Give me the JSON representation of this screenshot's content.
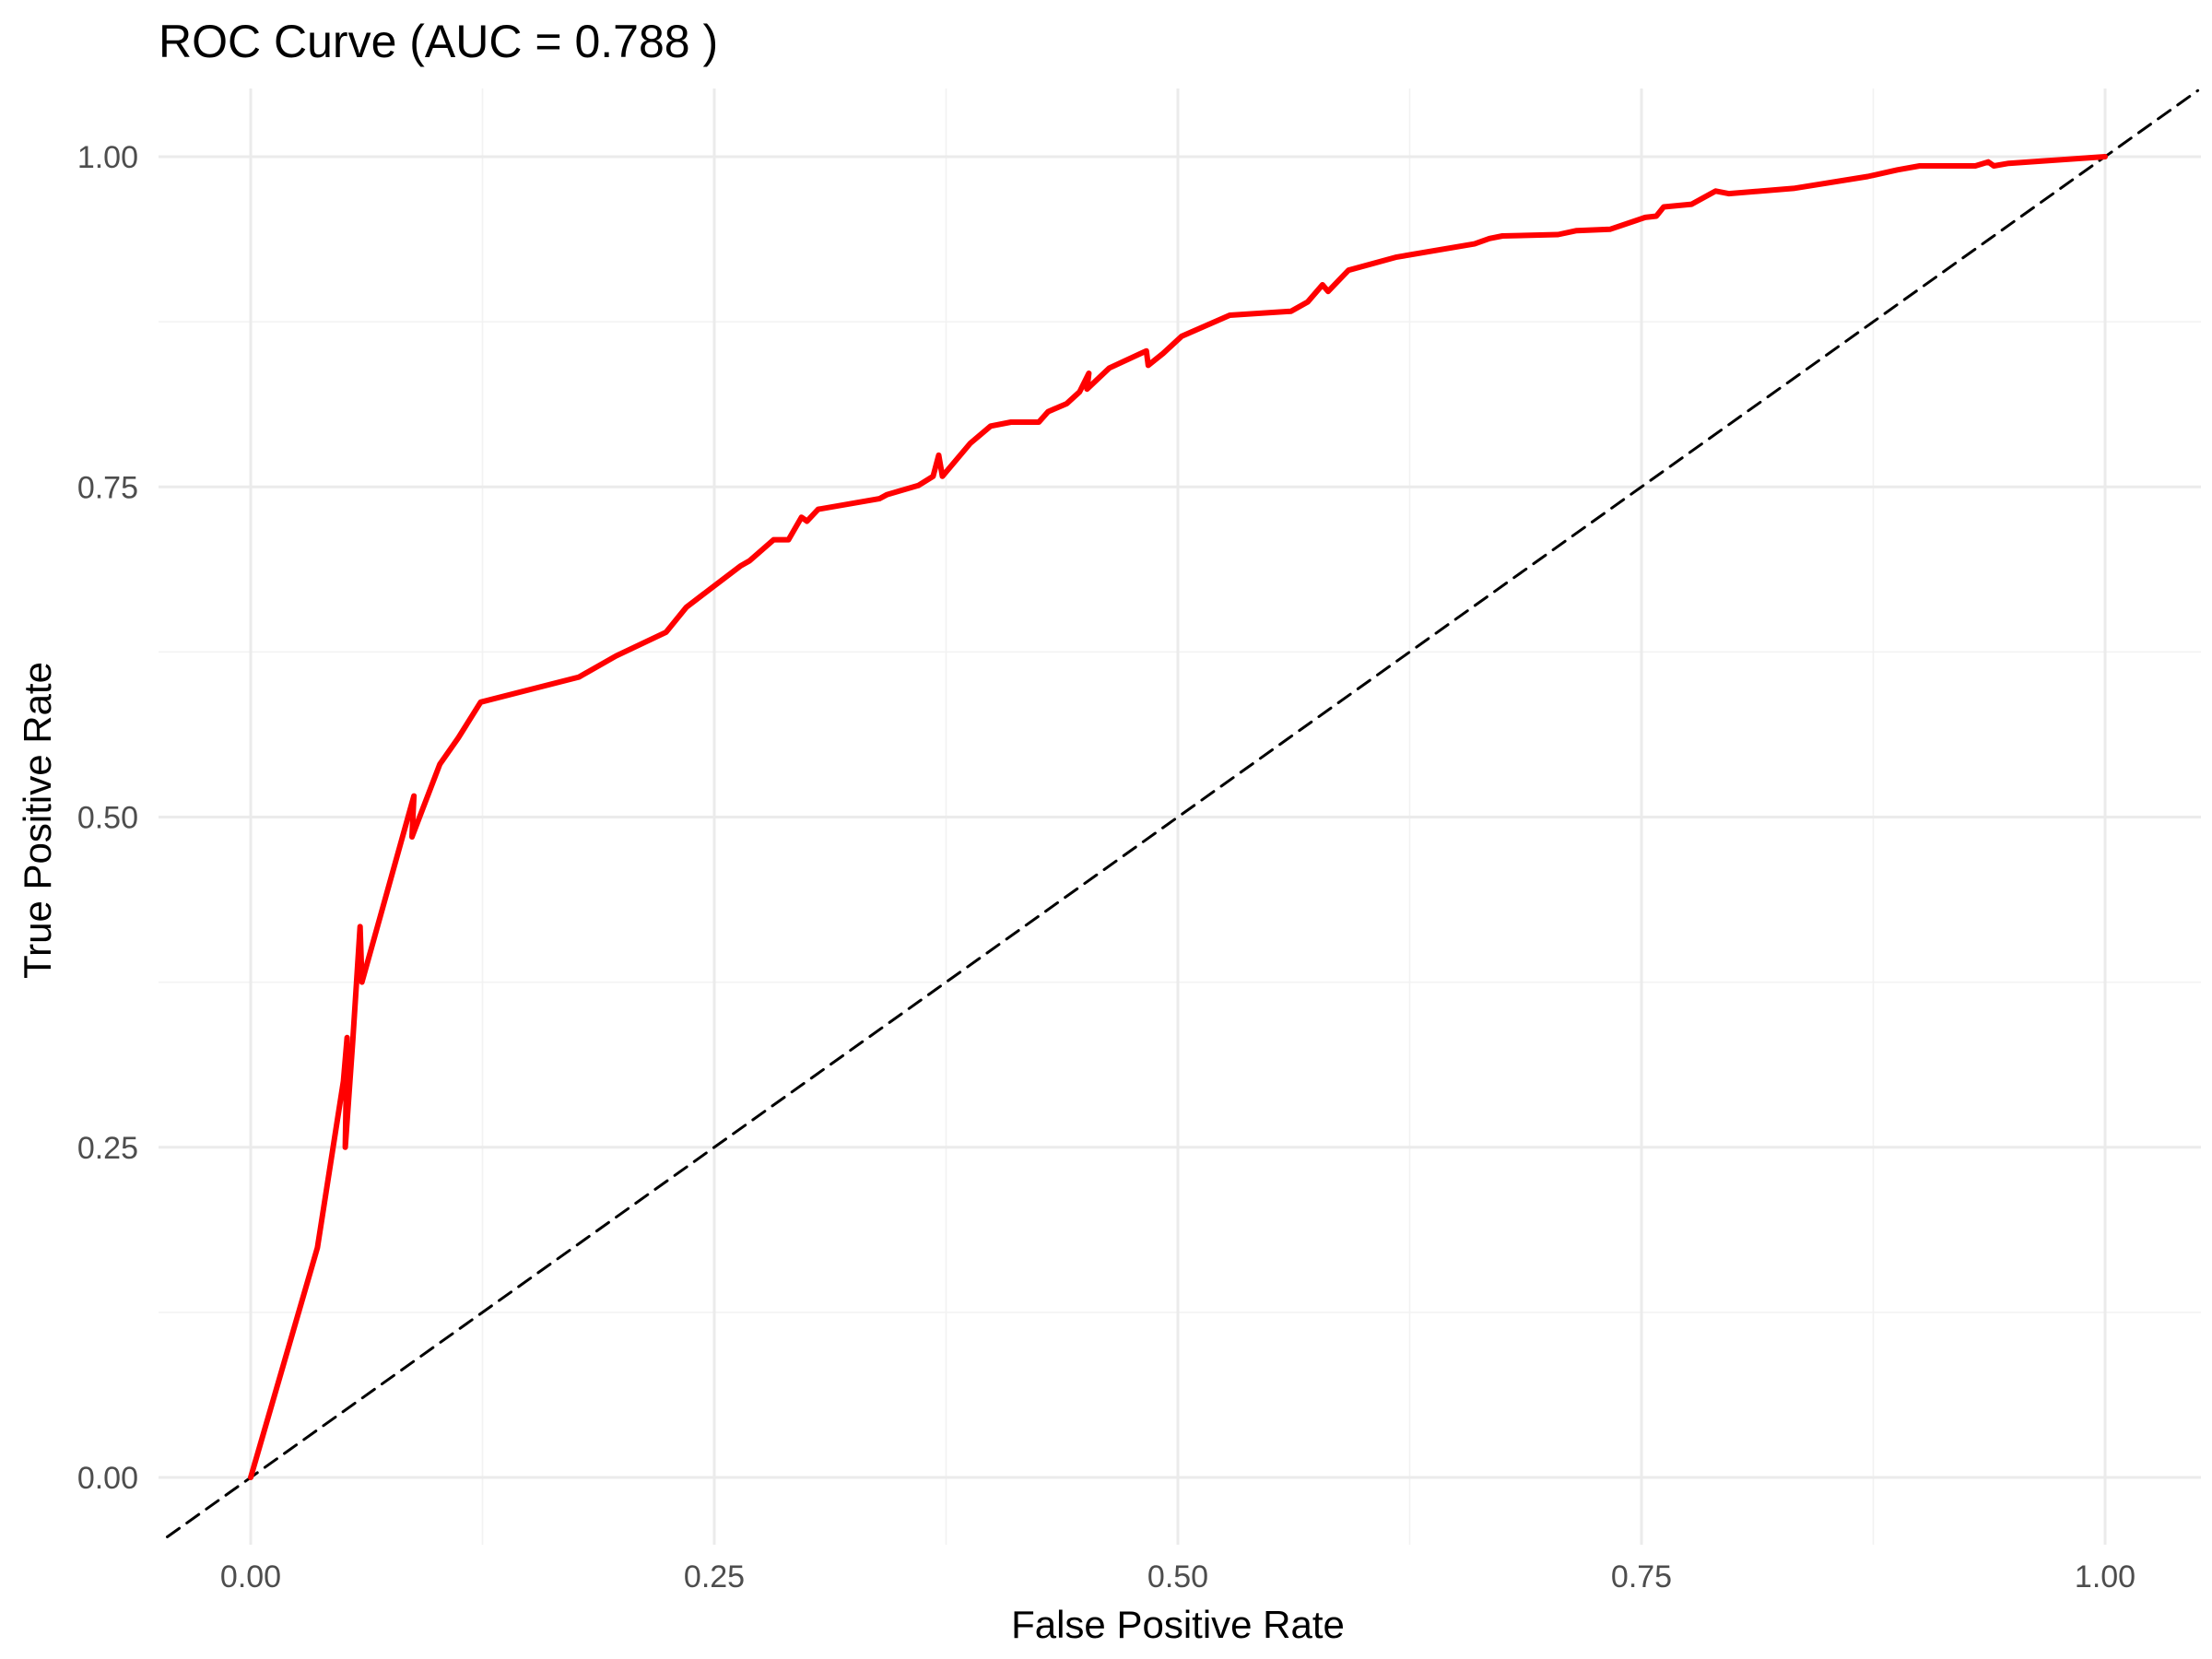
{
  "chart_data": {
    "type": "line",
    "title": "ROC Curve (AUC = 0.788 )",
    "xlabel": "False Positive Rate",
    "ylabel": "True Positive Rate",
    "xlim": [
      -0.045,
      1.05
    ],
    "ylim": [
      -0.045,
      1.05
    ],
    "x_ticks": [
      0,
      0.25,
      0.5,
      0.75,
      1
    ],
    "x_tick_labels": [
      "0.00",
      "0.25",
      "0.50",
      "0.75",
      "1.00"
    ],
    "y_ticks": [
      0,
      0.25,
      0.5,
      0.75,
      1
    ],
    "y_tick_labels": [
      "0.00",
      "0.25",
      "0.50",
      "0.75",
      "1.00"
    ],
    "grid": true,
    "legend": "none",
    "series": [
      {
        "color": "#ff0000",
        "line_style": "solid",
        "points": [
          [
            0.0,
            0.0
          ],
          [
            0.036,
            0.174
          ],
          [
            0.05,
            0.3
          ],
          [
            0.052,
            0.333
          ],
          [
            0.051,
            0.25
          ],
          [
            0.055,
            0.33
          ],
          [
            0.059,
            0.417
          ],
          [
            0.06,
            0.375
          ],
          [
            0.088,
            0.516
          ],
          [
            0.087,
            0.485
          ],
          [
            0.102,
            0.54
          ],
          [
            0.112,
            0.56
          ],
          [
            0.124,
            0.587
          ],
          [
            0.177,
            0.606
          ],
          [
            0.197,
            0.622
          ],
          [
            0.224,
            0.64
          ],
          [
            0.235,
            0.659
          ],
          [
            0.264,
            0.69
          ],
          [
            0.269,
            0.694
          ],
          [
            0.282,
            0.71
          ],
          [
            0.29,
            0.71
          ],
          [
            0.297,
            0.727
          ],
          [
            0.3,
            0.724
          ],
          [
            0.306,
            0.733
          ],
          [
            0.339,
            0.741
          ],
          [
            0.343,
            0.744
          ],
          [
            0.36,
            0.751
          ],
          [
            0.368,
            0.758
          ],
          [
            0.371,
            0.774
          ],
          [
            0.373,
            0.758
          ],
          [
            0.388,
            0.783
          ],
          [
            0.399,
            0.796
          ],
          [
            0.41,
            0.799
          ],
          [
            0.425,
            0.799
          ],
          [
            0.43,
            0.807
          ],
          [
            0.44,
            0.813
          ],
          [
            0.447,
            0.822
          ],
          [
            0.452,
            0.836
          ],
          [
            0.451,
            0.824
          ],
          [
            0.463,
            0.84
          ],
          [
            0.483,
            0.853
          ],
          [
            0.484,
            0.842
          ],
          [
            0.492,
            0.851
          ],
          [
            0.502,
            0.864
          ],
          [
            0.528,
            0.88
          ],
          [
            0.561,
            0.883
          ],
          [
            0.57,
            0.89
          ],
          [
            0.578,
            0.903
          ],
          [
            0.581,
            0.898
          ],
          [
            0.592,
            0.914
          ],
          [
            0.618,
            0.924
          ],
          [
            0.66,
            0.934
          ],
          [
            0.668,
            0.938
          ],
          [
            0.675,
            0.94
          ],
          [
            0.705,
            0.941
          ],
          [
            0.715,
            0.944
          ],
          [
            0.733,
            0.945
          ],
          [
            0.752,
            0.954
          ],
          [
            0.758,
            0.955
          ],
          [
            0.762,
            0.962
          ],
          [
            0.777,
            0.964
          ],
          [
            0.79,
            0.974
          ],
          [
            0.797,
            0.972
          ],
          [
            0.832,
            0.976
          ],
          [
            0.872,
            0.985
          ],
          [
            0.888,
            0.99
          ],
          [
            0.9,
            0.993
          ],
          [
            0.93,
            0.993
          ],
          [
            0.937,
            0.996
          ],
          [
            0.94,
            0.993
          ],
          [
            0.948,
            0.995
          ],
          [
            1.0,
            1.0
          ]
        ]
      },
      {
        "color": "#000000",
        "line_style": "dashed",
        "points": [
          [
            -0.045,
            -0.045
          ],
          [
            1.05,
            1.05
          ]
        ]
      }
    ]
  }
}
